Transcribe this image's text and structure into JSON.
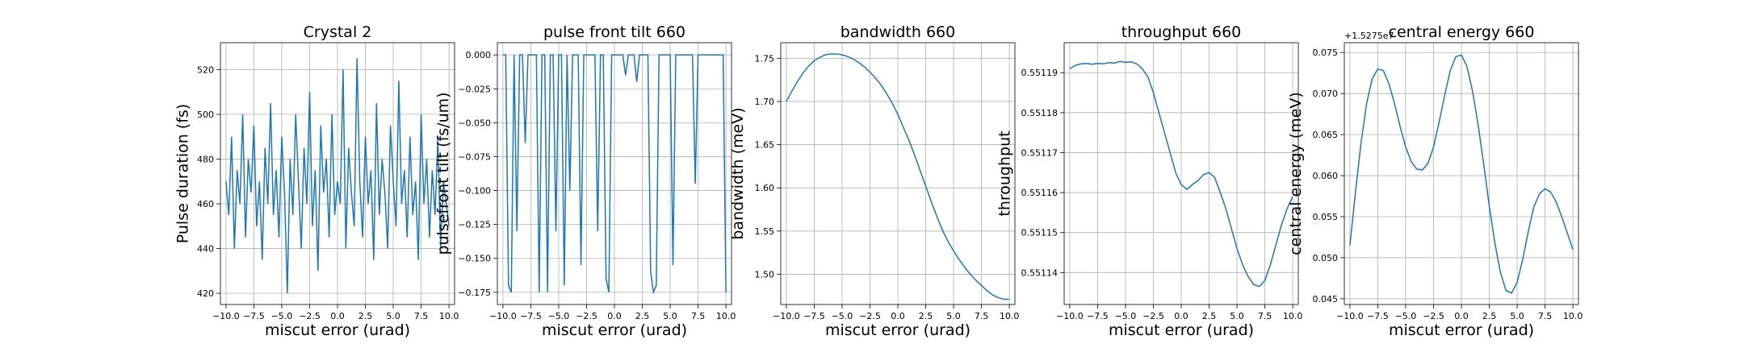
{
  "chart_data": [
    {
      "type": "line",
      "title": "Crystal 2",
      "xlabel": "miscut error (urad)",
      "ylabel": "Pulse duration (fs)",
      "color": "#1f77b4",
      "grid": true,
      "x": [
        -10,
        -9.75,
        -9.5,
        -9.25,
        -9,
        -8.75,
        -8.5,
        -8.25,
        -8,
        -7.75,
        -7.5,
        -7.25,
        -7,
        -6.75,
        -6.5,
        -6.25,
        -6,
        -5.75,
        -5.5,
        -5.25,
        -5,
        -4.75,
        -4.5,
        -4.25,
        -4,
        -3.75,
        -3.5,
        -3.25,
        -3,
        -2.75,
        -2.5,
        -2.25,
        -2,
        -1.75,
        -1.5,
        -1.25,
        -1,
        -0.75,
        -0.5,
        -0.25,
        0,
        0.25,
        0.5,
        0.75,
        1,
        1.25,
        1.5,
        1.75,
        2,
        2.25,
        2.5,
        2.75,
        3,
        3.25,
        3.5,
        3.75,
        4,
        4.25,
        4.5,
        4.75,
        5,
        5.25,
        5.5,
        5.75,
        6,
        6.25,
        6.5,
        6.75,
        7,
        7.25,
        7.5,
        7.75,
        8,
        8.25,
        8.5,
        8.75,
        9,
        9.25,
        9.5,
        9.75,
        10
      ],
      "values": [
        470,
        455,
        490,
        440,
        475,
        460,
        500,
        445,
        480,
        465,
        495,
        450,
        470,
        435,
        485,
        460,
        505,
        455,
        475,
        445,
        490,
        465,
        420,
        480,
        455,
        500,
        470,
        440,
        485,
        460,
        510,
        450,
        475,
        430,
        495,
        465,
        480,
        445,
        500,
        455,
        470,
        460,
        520,
        440,
        485,
        465,
        450,
        525,
        470,
        445,
        490,
        460,
        475,
        435,
        505,
        455,
        480,
        465,
        440,
        495,
        470,
        450,
        515,
        460,
        475,
        445,
        490,
        455,
        470,
        435,
        500,
        460,
        480,
        445,
        475,
        455,
        490,
        440,
        470,
        460,
        450
      ],
      "xlim": [
        -10.5,
        10.5
      ],
      "ylim": [
        415,
        532
      ],
      "xticks": [
        {
          "value": -10,
          "label": "−10.0"
        },
        {
          "value": -7.5,
          "label": "−7.5"
        },
        {
          "value": -5,
          "label": "−5.0"
        },
        {
          "value": -2.5,
          "label": "−2.5"
        },
        {
          "value": 0,
          "label": "0.0"
        },
        {
          "value": 2.5,
          "label": "2.5"
        },
        {
          "value": 5,
          "label": "5.0"
        },
        {
          "value": 7.5,
          "label": "7.5"
        },
        {
          "value": 10,
          "label": "10.0"
        }
      ],
      "yticks": [
        420,
        440,
        460,
        480,
        500,
        520
      ]
    },
    {
      "type": "line",
      "title": "pulse front tilt 660",
      "xlabel": "miscut error (urad)",
      "ylabel": "pulsefront tilt (fs/um)",
      "color": "#1f77b4",
      "grid": true,
      "x": [
        -10,
        -9.75,
        -9.5,
        -9.25,
        -9,
        -8.75,
        -8.5,
        -8.25,
        -8,
        -7.75,
        -7.5,
        -7.25,
        -7,
        -6.75,
        -6.5,
        -6.25,
        -6,
        -5.75,
        -5.5,
        -5.25,
        -5,
        -4.75,
        -4.5,
        -4.25,
        -4,
        -3.75,
        -3.5,
        -3.25,
        -3,
        -2.75,
        -2.5,
        -2.25,
        -2,
        -1.75,
        -1.5,
        -1.25,
        -1,
        -0.75,
        -0.5,
        -0.25,
        0,
        0.25,
        0.5,
        0.75,
        1,
        1.25,
        1.5,
        1.75,
        2,
        2.25,
        2.5,
        2.75,
        3,
        3.25,
        3.5,
        3.75,
        4,
        4.25,
        4.5,
        4.75,
        5,
        5.25,
        5.5,
        5.75,
        6,
        6.25,
        6.5,
        6.75,
        7,
        7.25,
        7.5,
        7.75,
        8,
        8.25,
        8.5,
        8.75,
        9,
        9.25,
        9.5,
        9.75,
        10
      ],
      "values": [
        0,
        0,
        -0.17,
        -0.175,
        0,
        -0.13,
        0,
        0,
        -0.065,
        0,
        0,
        0,
        0,
        -0.175,
        0,
        0,
        -0.175,
        0,
        0,
        -0.13,
        0,
        0,
        -0.17,
        0,
        -0.1,
        0,
        0,
        0,
        -0.155,
        0,
        0,
        0,
        0,
        0,
        -0.13,
        0,
        0,
        -0.165,
        -0.175,
        0,
        0,
        0,
        0,
        0,
        -0.015,
        0,
        0,
        0,
        -0.02,
        0,
        0,
        0,
        0,
        -0.16,
        -0.175,
        -0.17,
        0,
        0,
        0,
        0,
        0,
        -0.155,
        0,
        0,
        0,
        0,
        0,
        0,
        0,
        -0.095,
        0,
        0,
        0,
        0,
        0,
        0,
        0,
        0,
        0,
        0,
        -0.175
      ],
      "xlim": [
        -10.5,
        10.5
      ],
      "ylim": [
        -0.184,
        0.009
      ],
      "xticks": [
        {
          "value": -10,
          "label": "−10.0"
        },
        {
          "value": -7.5,
          "label": "−7.5"
        },
        {
          "value": -5,
          "label": "−5.0"
        },
        {
          "value": -2.5,
          "label": "−2.5"
        },
        {
          "value": 0,
          "label": "0.0"
        },
        {
          "value": 2.5,
          "label": "2.5"
        },
        {
          "value": 5,
          "label": "5.0"
        },
        {
          "value": 7.5,
          "label": "7.5"
        },
        {
          "value": 10,
          "label": "10.0"
        }
      ],
      "yticks": [
        {
          "value": 0,
          "label": "0.000"
        },
        {
          "value": -0.025,
          "label": "−0.025"
        },
        {
          "value": -0.05,
          "label": "−0.050"
        },
        {
          "value": -0.075,
          "label": "−0.075"
        },
        {
          "value": -0.1,
          "label": "−0.100"
        },
        {
          "value": -0.125,
          "label": "−0.125"
        },
        {
          "value": -0.15,
          "label": "−0.150"
        },
        {
          "value": -0.175,
          "label": "−0.175"
        }
      ]
    },
    {
      "type": "line",
      "title": "bandwidth 660",
      "xlabel": "miscut error (urad)",
      "ylabel": "bandwidth (meV)",
      "color": "#1f77b4",
      "grid": true,
      "x": [
        -10,
        -9.5,
        -9,
        -8.5,
        -8,
        -7.5,
        -7,
        -6.5,
        -6,
        -5.5,
        -5,
        -4.5,
        -4,
        -3.5,
        -3,
        -2.5,
        -2,
        -1.5,
        -1,
        -0.5,
        0,
        0.5,
        1,
        1.5,
        2,
        2.5,
        3,
        3.5,
        4,
        4.5,
        5,
        5.5,
        6,
        6.5,
        7,
        7.5,
        8,
        8.5,
        9,
        9.5,
        10
      ],
      "values": [
        1.7,
        1.712,
        1.723,
        1.733,
        1.741,
        1.747,
        1.751,
        1.754,
        1.755,
        1.755,
        1.754,
        1.752,
        1.749,
        1.745,
        1.74,
        1.734,
        1.727,
        1.719,
        1.709,
        1.698,
        1.685,
        1.67,
        1.655,
        1.638,
        1.62,
        1.602,
        1.584,
        1.567,
        1.551,
        1.538,
        1.527,
        1.517,
        1.508,
        1.5,
        1.493,
        1.487,
        1.481,
        1.476,
        1.473,
        1.471,
        1.471
      ],
      "xlim": [
        -10.5,
        10.5
      ],
      "ylim": [
        1.465,
        1.768
      ],
      "xticks": [
        {
          "value": -10,
          "label": "−10.0"
        },
        {
          "value": -7.5,
          "label": "−7.5"
        },
        {
          "value": -5,
          "label": "−5.0"
        },
        {
          "value": -2.5,
          "label": "−2.5"
        },
        {
          "value": 0,
          "label": "0.0"
        },
        {
          "value": 2.5,
          "label": "2.5"
        },
        {
          "value": 5,
          "label": "5.0"
        },
        {
          "value": 7.5,
          "label": "7.5"
        },
        {
          "value": 10,
          "label": "10.0"
        }
      ],
      "yticks": [
        {
          "value": 1.5,
          "label": "1.50"
        },
        1.55,
        {
          "value": 1.6,
          "label": "1.60"
        },
        1.65,
        {
          "value": 1.7,
          "label": "1.70"
        },
        1.75
      ]
    },
    {
      "type": "line",
      "title": "throughput 660",
      "xlabel": "miscut error (urad)",
      "ylabel": "throughput",
      "color": "#1f77b4",
      "grid": true,
      "x": [
        -10,
        -9.5,
        -9,
        -8.5,
        -8,
        -7.5,
        -7,
        -6.5,
        -6,
        -5.5,
        -5,
        -4.5,
        -4,
        -3.5,
        -3,
        -2.5,
        -2,
        -1.5,
        -1,
        -0.5,
        0,
        0.5,
        1,
        1.5,
        2,
        2.5,
        3,
        3.5,
        4,
        4.5,
        5,
        5.5,
        6,
        6.5,
        7,
        7.5,
        8,
        8.5,
        9,
        9.5,
        10
      ],
      "values": [
        0.551191,
        0.5511918,
        0.5511922,
        0.5511923,
        0.5511921,
        0.5511923,
        0.5511922,
        0.5511925,
        0.5511924,
        0.5511928,
        0.5511926,
        0.5511927,
        0.5511922,
        0.551191,
        0.551189,
        0.551185,
        0.55118,
        0.551175,
        0.55117,
        0.551165,
        0.551162,
        0.5511608,
        0.551162,
        0.551163,
        0.5511645,
        0.551165,
        0.5511638,
        0.55116,
        0.551156,
        0.551151,
        0.551146,
        0.551142,
        0.551139,
        0.551137,
        0.5511365,
        0.551138,
        0.551142,
        0.551147,
        0.551152,
        0.551156,
        0.551159
      ],
      "xlim": [
        -10.5,
        10.5
      ],
      "ylim": [
        0.551132,
        0.5511975
      ],
      "xticks": [
        {
          "value": -10,
          "label": "−10.0"
        },
        {
          "value": -7.5,
          "label": "−7.5"
        },
        {
          "value": -5,
          "label": "−5.0"
        },
        {
          "value": -2.5,
          "label": "−2.5"
        },
        {
          "value": 0,
          "label": "0.0"
        },
        {
          "value": 2.5,
          "label": "2.5"
        },
        {
          "value": 5,
          "label": "5.0"
        },
        {
          "value": 7.5,
          "label": "7.5"
        },
        {
          "value": 10,
          "label": "10.0"
        }
      ],
      "yticks": [
        0.55114,
        0.55115,
        0.55116,
        0.55117,
        0.55118,
        0.55119
      ]
    },
    {
      "type": "line",
      "title": "central energy 660",
      "xlabel": "miscut error (urad)",
      "ylabel": "central energy (meV)",
      "y_offset_text": "+1.5275e7",
      "color": "#1f77b4",
      "grid": true,
      "x": [
        -10,
        -9.5,
        -9,
        -8.5,
        -8,
        -7.5,
        -7,
        -6.5,
        -6,
        -5.5,
        -5,
        -4.5,
        -4,
        -3.5,
        -3,
        -2.5,
        -2,
        -1.5,
        -1,
        -0.5,
        0,
        0.5,
        1,
        1.5,
        2,
        2.5,
        3,
        3.5,
        4,
        4.5,
        5,
        5.5,
        6,
        6.5,
        7,
        7.5,
        8,
        8.5,
        9,
        9.5,
        10
      ],
      "values": [
        0.0515,
        0.058,
        0.064,
        0.0688,
        0.0718,
        0.073,
        0.0728,
        0.0712,
        0.0688,
        0.066,
        0.0635,
        0.0617,
        0.0608,
        0.0607,
        0.0615,
        0.0635,
        0.0665,
        0.0698,
        0.0728,
        0.0745,
        0.0747,
        0.0733,
        0.0703,
        0.0662,
        0.0614,
        0.0563,
        0.0518,
        0.0482,
        0.046,
        0.0457,
        0.047,
        0.0498,
        0.0532,
        0.0562,
        0.0578,
        0.0584,
        0.058,
        0.0568,
        0.055,
        0.053,
        0.051
      ],
      "xlim": [
        -10.5,
        10.5
      ],
      "ylim": [
        0.0443,
        0.0762
      ],
      "xticks": [
        {
          "value": -10,
          "label": "−10.0"
        },
        {
          "value": -7.5,
          "label": "−7.5"
        },
        {
          "value": -5,
          "label": "−5.0"
        },
        {
          "value": -2.5,
          "label": "−2.5"
        },
        {
          "value": 0,
          "label": "0.0"
        },
        {
          "value": 2.5,
          "label": "2.5"
        },
        {
          "value": 5,
          "label": "5.0"
        },
        {
          "value": 7.5,
          "label": "7.5"
        },
        {
          "value": 10,
          "label": "10.0"
        }
      ],
      "yticks": [
        0.045,
        {
          "value": 0.05,
          "label": "0.050"
        },
        0.055,
        {
          "value": 0.06,
          "label": "0.060"
        },
        0.065,
        {
          "value": 0.07,
          "label": "0.070"
        },
        0.075
      ]
    }
  ]
}
